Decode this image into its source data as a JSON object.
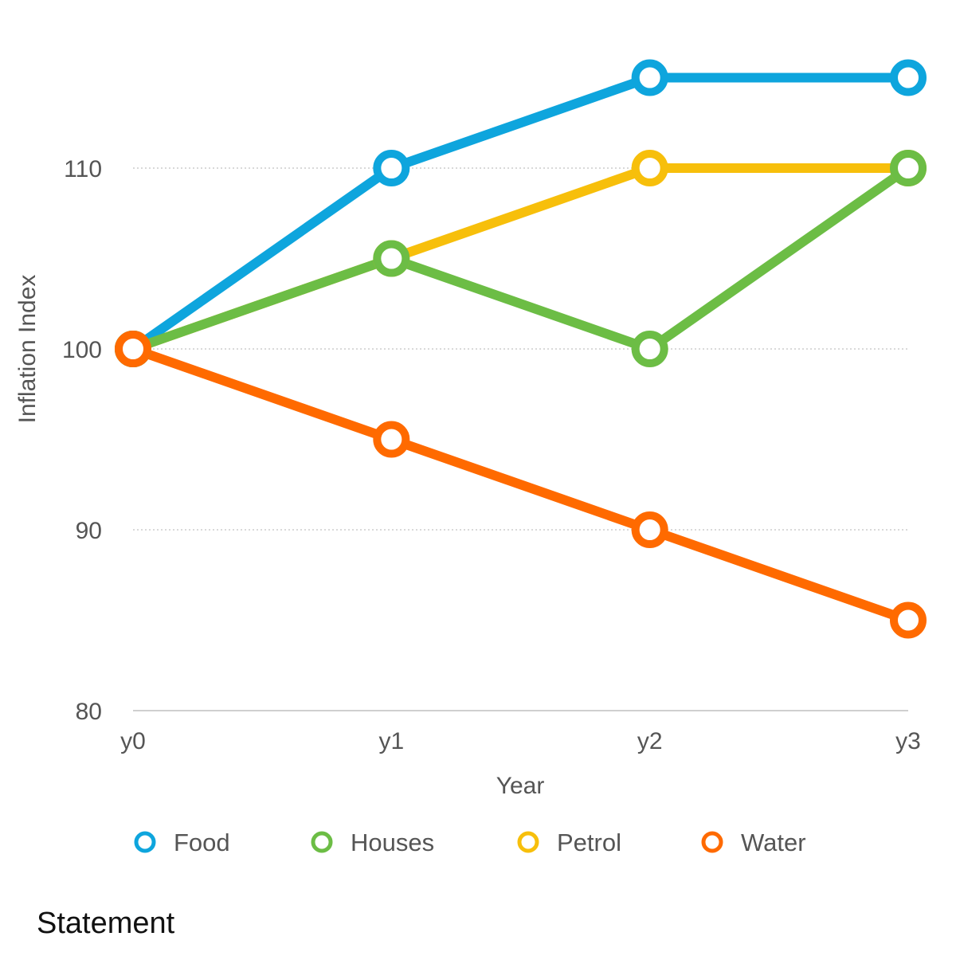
{
  "chart_data": {
    "type": "line",
    "title": "",
    "xlabel": "Year",
    "ylabel": "Inflation Index",
    "categories": [
      "y0",
      "y1",
      "y2",
      "y3"
    ],
    "ylim": [
      80,
      116
    ],
    "yticks": [
      80,
      90,
      100,
      110
    ],
    "grid": true,
    "legend_position": "bottom",
    "series": [
      {
        "name": "Food",
        "color": "#0ea5dd",
        "values": [
          100,
          110,
          115,
          115
        ]
      },
      {
        "name": "Petrol",
        "color": "#f7bf0b",
        "values": [
          100,
          105,
          110,
          110
        ]
      },
      {
        "name": "Houses",
        "color": "#6cbd45",
        "values": [
          100,
          105,
          100,
          110
        ]
      },
      {
        "name": "Water",
        "color": "#ff6a00",
        "values": [
          100,
          95,
          90,
          85
        ]
      }
    ],
    "legend_order": [
      "Food",
      "Houses",
      "Petrol",
      "Water"
    ]
  },
  "footer": {
    "statement_label": "Statement"
  }
}
